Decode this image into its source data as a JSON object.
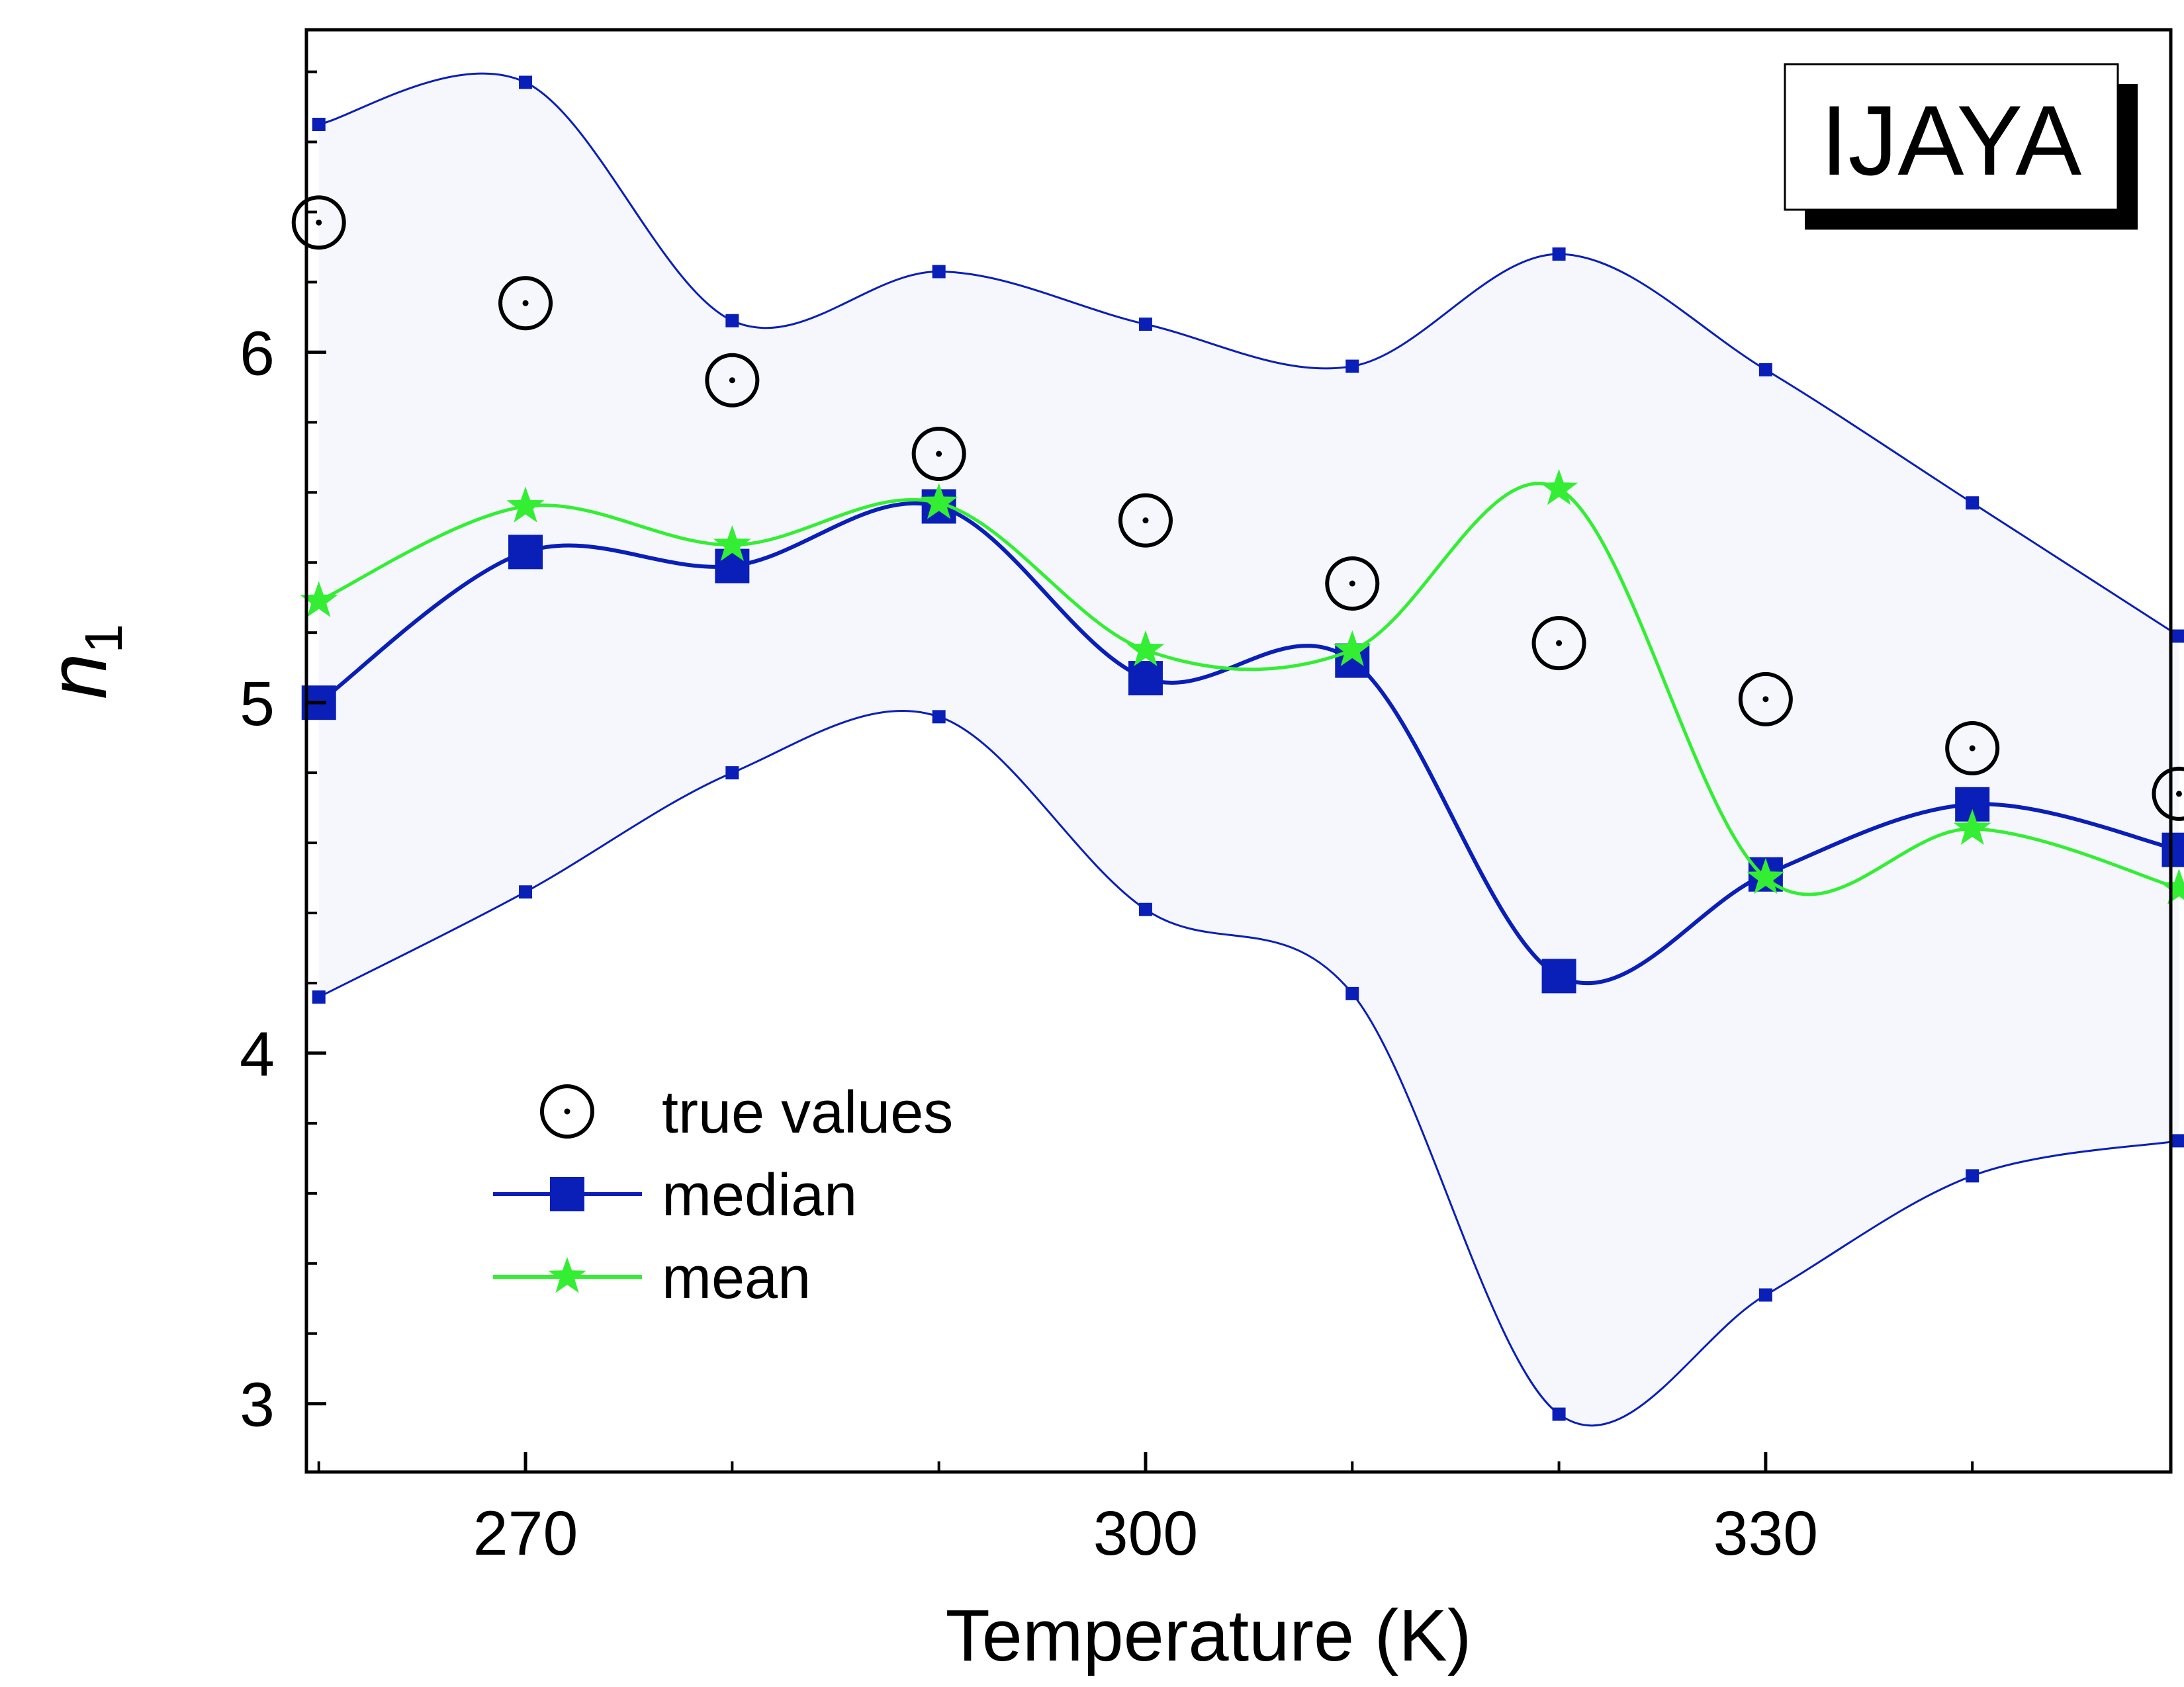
{
  "chart_data": {
    "type": "line",
    "inset_label": "IJAYA",
    "xlabel": "Temperature (K)",
    "ylabel": "n",
    "ylabel_subscript": "1",
    "xlim": [
      259.4,
      349.6
    ],
    "ylim": [
      2.805,
      6.92
    ],
    "xticks": [
      270,
      300,
      330
    ],
    "xtick_labels": [
      "270",
      "300",
      "330"
    ],
    "xminor_ticks": [
      260,
      280,
      290,
      310,
      320,
      340,
      350
    ],
    "yticks": [
      3,
      4,
      5,
      6
    ],
    "ytick_labels": [
      "3",
      "4",
      "5",
      "6"
    ],
    "yminor_step": 0.2,
    "grid": false,
    "legend_position": "lower-left",
    "x": [
      260,
      270,
      280,
      290,
      300,
      310,
      320,
      330,
      340,
      350
    ],
    "band": {
      "upper": [
        6.65,
        6.77,
        6.09,
        6.23,
        6.08,
        5.96,
        6.28,
        5.95,
        5.57,
        5.19
      ],
      "lower": [
        4.16,
        4.46,
        4.8,
        4.96,
        4.41,
        4.17,
        2.97,
        3.31,
        3.65,
        3.75
      ],
      "fill_color": "#f5f7fd",
      "line_color": "#0a1fb8"
    },
    "series": [
      {
        "name": "true values",
        "marker": "circle-dot",
        "color": "#000000",
        "values": [
          6.37,
          6.14,
          5.92,
          5.71,
          5.52,
          5.34,
          5.17,
          5.01,
          4.87,
          4.74
        ]
      },
      {
        "name": "median",
        "marker": "square",
        "color": "#0a1fb8",
        "values": [
          5.0,
          5.43,
          5.39,
          5.56,
          5.07,
          5.12,
          4.22,
          4.51,
          4.71,
          4.58
        ]
      },
      {
        "name": "mean",
        "marker": "star",
        "color": "#33ee33",
        "values": [
          5.29,
          5.56,
          5.45,
          5.57,
          5.15,
          5.15,
          5.61,
          4.5,
          4.64,
          4.47
        ]
      }
    ]
  }
}
